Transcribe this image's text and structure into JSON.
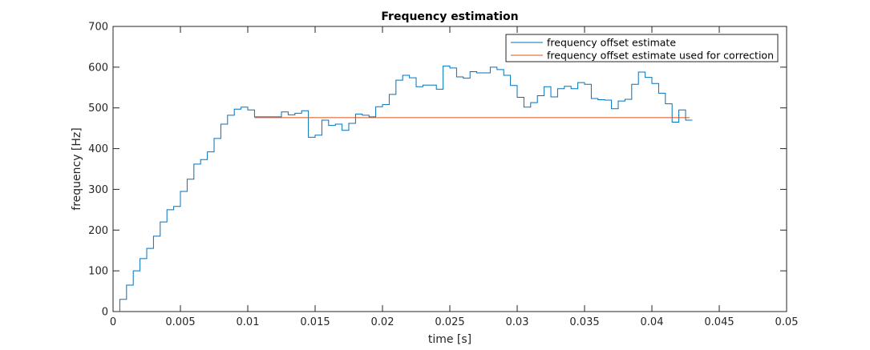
{
  "chart_data": {
    "type": "line",
    "title": "Frequency estimation",
    "xlabel": "time [s]",
    "ylabel": "frequency [Hz]",
    "xlim": [
      0,
      0.05
    ],
    "ylim": [
      0,
      700
    ],
    "xticks": [
      0,
      0.005,
      0.01,
      0.015,
      0.02,
      0.025,
      0.03,
      0.035,
      0.04,
      0.045,
      0.05
    ],
    "xtick_labels": [
      "0",
      "0.005",
      "0.01",
      "0.015",
      "0.02",
      "0.025",
      "0.03",
      "0.035",
      "0.04",
      "0.045",
      "0.05"
    ],
    "yticks": [
      0,
      100,
      200,
      300,
      400,
      500,
      600,
      700
    ],
    "ytick_labels": [
      "0",
      "100",
      "200",
      "300",
      "400",
      "500",
      "600",
      "700"
    ],
    "grid": false,
    "legend_position": "top-right",
    "series": [
      {
        "name": "frequency offset estimate",
        "color": "#0072BD",
        "style": "stairs",
        "step": 0.0005,
        "start": 0,
        "values": [
          0,
          30,
          65,
          100,
          130,
          155,
          185,
          220,
          250,
          258,
          295,
          325,
          362,
          373,
          392,
          425,
          460,
          482,
          497,
          502,
          495,
          478,
          478,
          478,
          478,
          490,
          483,
          487,
          493,
          428,
          433,
          470,
          457,
          460,
          445,
          462,
          485,
          482,
          478,
          503,
          508,
          533,
          568,
          580,
          574,
          552,
          556,
          556,
          546,
          603,
          598,
          576,
          573,
          589,
          586,
          586,
          600,
          594,
          580,
          555,
          526,
          502,
          513,
          530,
          552,
          527,
          547,
          553,
          547,
          562,
          558,
          523,
          520,
          519,
          498,
          517,
          521,
          558,
          588,
          575,
          560,
          536,
          510,
          465,
          495,
          470
        ]
      },
      {
        "name": "frequency offset estimate used for correction",
        "color": "#D95319",
        "style": "line",
        "x": [
          0.0105,
          0.0428
        ],
        "y": [
          476,
          476
        ]
      }
    ]
  }
}
